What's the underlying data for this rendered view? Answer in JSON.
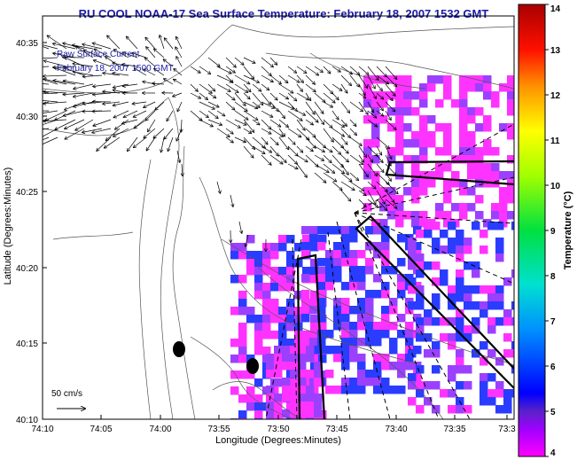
{
  "title": "RU COOL  NOAA-17  Sea Surface Temperature:  February 18, 2007 1532 GMT",
  "legend": {
    "line1": "Raw Surface Current",
    "line2": "February 18, 2007 1500 GMT",
    "scale_label": "50 cm/s"
  },
  "axes": {
    "xlabel": "Longitude (Degrees:Minutes)",
    "ylabel": "Latitude (Degrees:Minutes)",
    "x_ticks": [
      "74:10",
      "74:05",
      "74:00",
      "73:55",
      "73:50",
      "73:45",
      "73:40",
      "73:35",
      "73:3"
    ],
    "y_ticks": [
      "40:35",
      "40:30",
      "40:25",
      "40:20",
      "40:15",
      "40:10"
    ]
  },
  "colorbar": {
    "label": "Temperature (°C)",
    "min": 4,
    "max": 14,
    "ticks": [
      "14",
      "13",
      "12",
      "11",
      "10",
      "9",
      "8",
      "7",
      "6",
      "5",
      "4"
    ]
  },
  "colors": {
    "title": "#1a1aa6",
    "sst_magenta": "#ff33ff",
    "sst_violet": "#9b40ff",
    "sst_blue": "#2a3cff"
  }
}
